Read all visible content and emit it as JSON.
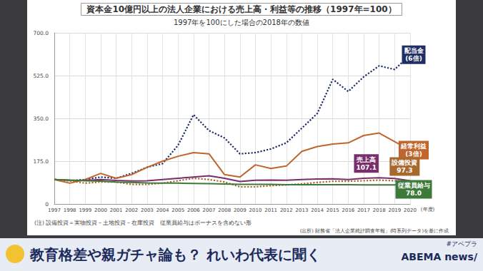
{
  "chart_data": {
    "type": "line",
    "title": "資本金10億円以上の法人企業における売上高・利益等の推移（1997年=100）",
    "subtitle": "1997年を100にした場合の2018年の数値",
    "x_label": "(年度)",
    "note": "(注) 設備投資＝実物投資－土地投資－在庫投資　従業員給与はボーナスを含めない形",
    "source": "(出所) 財務省「法人企業統計調査年報」(時系列データ)を基に作成",
    "categories": [
      "1997",
      "1998",
      "1999",
      "2000",
      "2001",
      "2002",
      "2003",
      "2004",
      "2005",
      "2006",
      "2007",
      "2008",
      "2009",
      "2010",
      "2011",
      "2012",
      "2013",
      "2014",
      "2015",
      "2016",
      "2017",
      "2018",
      "2019",
      "2020"
    ],
    "series": [
      {
        "name": "配当金",
        "annotation": "(6倍)",
        "color": "#1f2f66",
        "line_style": "dotted",
        "values": [
          100,
          95,
          100,
          110,
          105,
          125,
          150,
          165,
          240,
          365,
          300,
          270,
          205,
          210,
          225,
          250,
          310,
          370,
          510,
          460,
          520,
          565,
          550,
          610
        ]
      },
      {
        "name": "経常利益",
        "annotation": "(3倍)",
        "color": "#c0652b",
        "line_style": "solid",
        "values": [
          100,
          85,
          100,
          125,
          105,
          120,
          150,
          175,
          195,
          210,
          205,
          120,
          110,
          160,
          145,
          155,
          215,
          235,
          245,
          250,
          280,
          290,
          255,
          220
        ]
      },
      {
        "name": "売上高",
        "annotation": "107.1",
        "color": "#7a2d6b",
        "line_style": "solid",
        "values": [
          100,
          97,
          96,
          100,
          96,
          94,
          95,
          100,
          105,
          110,
          115,
          105,
          92,
          97,
          98,
          97,
          100,
          102,
          103,
          100,
          105,
          107.1,
          104,
          95
        ]
      },
      {
        "name": "設備投資",
        "annotation": "97.3",
        "color": "#a8692f",
        "line_style": "dotted",
        "values": [
          100,
          95,
          85,
          90,
          90,
          80,
          80,
          85,
          95,
          105,
          100,
          90,
          70,
          70,
          75,
          78,
          82,
          88,
          93,
          93,
          95,
          97.3,
          95,
          88
        ]
      },
      {
        "name": "従業員給与",
        "annotation": "78.0",
        "color": "#3d7a3a",
        "line_style": "solid",
        "values": [
          100,
          98,
          95,
          93,
          90,
          88,
          86,
          85,
          85,
          84,
          83,
          82,
          80,
          80,
          80,
          79,
          79,
          79,
          79,
          79,
          78,
          78.0,
          78,
          77
        ]
      }
    ],
    "ylim": [
      0,
      700
    ],
    "yticks": [
      0,
      {
        "value": 175,
        "label": "175.0"
      },
      {
        "value": 350,
        "label": "350.0"
      },
      {
        "value": 525,
        "label": "525.0"
      },
      {
        "value": 700,
        "label": "700.0"
      }
    ],
    "grid": true
  },
  "banner": {
    "headline": "教育格差や親ガチャ論も？ れいわ代表に聞く",
    "hashtag": "#アベプラ",
    "logo": "ABEMA news/"
  }
}
